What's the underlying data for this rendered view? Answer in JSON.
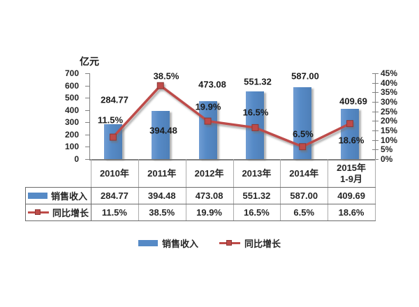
{
  "chart_data": {
    "type": "bar+line combo",
    "title": "",
    "categories": [
      "2010年",
      "2011年",
      "2012年",
      "2013年",
      "2014年",
      "2015年\n1-9月"
    ],
    "series": [
      {
        "name": "销售收入",
        "type": "bar",
        "axis": "left",
        "color": "#568ac6",
        "values": [
          284.77,
          394.48,
          473.08,
          551.32,
          587.0,
          409.69
        ],
        "labels": [
          "284.77",
          "394.48",
          "473.08",
          "551.32",
          "587.00",
          "409.69"
        ]
      },
      {
        "name": "同比增长",
        "type": "line",
        "axis": "right",
        "color": "#be4b48",
        "marker": "square",
        "values_percent": [
          11.5,
          38.5,
          19.9,
          16.5,
          6.5,
          18.6
        ],
        "labels": [
          "11.5%",
          "38.5%",
          "19.9%",
          "16.5%",
          "6.5%",
          "18.6%"
        ]
      }
    ],
    "left_axis": {
      "title": "亿元",
      "min": 0,
      "max": 700,
      "step": 100,
      "tick_labels": [
        "700",
        "600",
        "500",
        "400",
        "300",
        "200",
        "100",
        "0"
      ]
    },
    "right_axis": {
      "min": 0,
      "max": 45,
      "step": 5,
      "tick_labels": [
        "45%",
        "40%",
        "35%",
        "30%",
        "25%",
        "20%",
        "15%",
        "10%",
        "5%",
        "0%"
      ]
    },
    "gridlines": false,
    "legend_position": "bottom"
  },
  "data_table": {
    "header_row": [
      "2010年",
      "2011年",
      "2012年",
      "2013年",
      "2014年",
      "2015年\n1-9月"
    ],
    "rows": [
      {
        "name": "销售收入",
        "swatch": "bar-blue",
        "values": [
          "284.77",
          "394.48",
          "473.08",
          "551.32",
          "587.00",
          "409.69"
        ]
      },
      {
        "name": "同比增长",
        "swatch": "line-red",
        "values": [
          "11.5%",
          "38.5%",
          "19.9%",
          "16.5%",
          "6.5%",
          "18.6%"
        ]
      }
    ]
  },
  "legend": {
    "items": [
      {
        "label": "销售收入",
        "swatch": "bar-blue"
      },
      {
        "label": "同比增长",
        "swatch": "line-red"
      }
    ]
  },
  "colors": {
    "bar": "#568ac6",
    "line": "#be4b48",
    "line_marker_border": "#8c3836",
    "axis_line": "#808080",
    "table_border_dark": "#6b6b6b",
    "table_border_light": "#ababab",
    "text": "#262626",
    "background": "#ffffff"
  }
}
